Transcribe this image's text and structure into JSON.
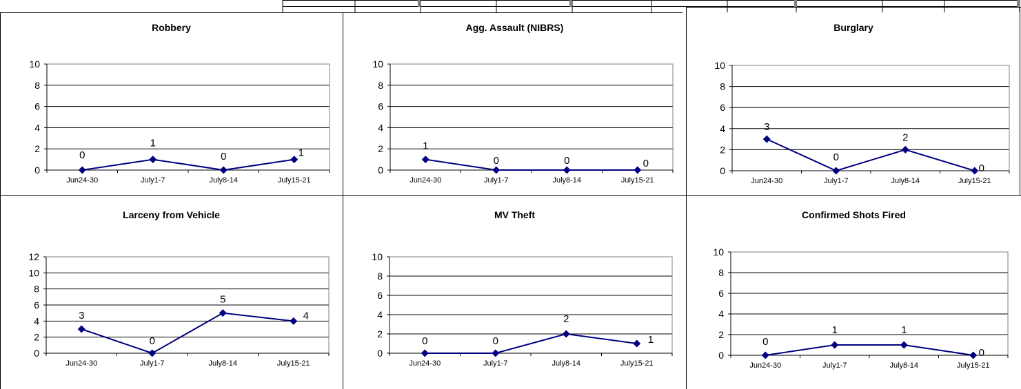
{
  "colors": {
    "series": "#000080",
    "grid": "#000000",
    "plot_border": "#808080",
    "strip_fill": "#808080"
  },
  "chart_data": [
    {
      "type": "line",
      "title": "Robbery",
      "categories": [
        "Jun24-30",
        "July1-7",
        "July8-14",
        "July15-21"
      ],
      "series": [
        {
          "values": [
            0,
            1,
            0,
            1
          ]
        }
      ],
      "ylim": [
        0,
        10
      ],
      "yticks": [
        0,
        2,
        4,
        6,
        8,
        10
      ],
      "grid": true,
      "legend": "none",
      "data_labels": true
    },
    {
      "type": "line",
      "title": "Agg. Assault (NIBRS)",
      "categories": [
        "Jun24-30",
        "July1-7",
        "July8-14",
        "July15-21"
      ],
      "series": [
        {
          "values": [
            1,
            0,
            0,
            0
          ]
        }
      ],
      "ylim": [
        0,
        10
      ],
      "yticks": [
        0,
        2,
        4,
        6,
        8,
        10
      ],
      "grid": true,
      "legend": "none",
      "data_labels": true
    },
    {
      "type": "line",
      "title": "Burglary",
      "categories": [
        "Jun24-30",
        "July1-7",
        "July8-14",
        "July15-21"
      ],
      "series": [
        {
          "values": [
            3,
            0,
            2,
            0
          ]
        }
      ],
      "ylim": [
        0,
        10
      ],
      "yticks": [
        0,
        2,
        4,
        6,
        8,
        10
      ],
      "grid": true,
      "legend": "none",
      "data_labels": true
    },
    {
      "type": "line",
      "title": "Larceny from Vehicle",
      "categories": [
        "Jun24-30",
        "July1-7",
        "July8-14",
        "July15-21"
      ],
      "series": [
        {
          "values": [
            3,
            0,
            5,
            4
          ]
        }
      ],
      "ylim": [
        0,
        12
      ],
      "yticks": [
        0,
        2,
        4,
        6,
        8,
        10,
        12
      ],
      "grid": true,
      "legend": "none",
      "data_labels": true
    },
    {
      "type": "line",
      "title": "MV Theft",
      "categories": [
        "Jun24-30",
        "July1-7",
        "July8-14",
        "July15-21"
      ],
      "series": [
        {
          "values": [
            0,
            0,
            2,
            1
          ]
        }
      ],
      "ylim": [
        0,
        10
      ],
      "yticks": [
        0,
        2,
        4,
        6,
        8,
        10
      ],
      "grid": true,
      "legend": "none",
      "data_labels": true
    },
    {
      "type": "line",
      "title": "Confirmed Shots Fired",
      "categories": [
        "Jun24-30",
        "July1-7",
        "July8-14",
        "July15-21"
      ],
      "series": [
        {
          "values": [
            0,
            1,
            1,
            0
          ]
        }
      ],
      "ylim": [
        0,
        10
      ],
      "yticks": [
        0,
        2,
        4,
        6,
        8,
        10
      ],
      "grid": true,
      "legend": "none",
      "data_labels": true
    }
  ]
}
